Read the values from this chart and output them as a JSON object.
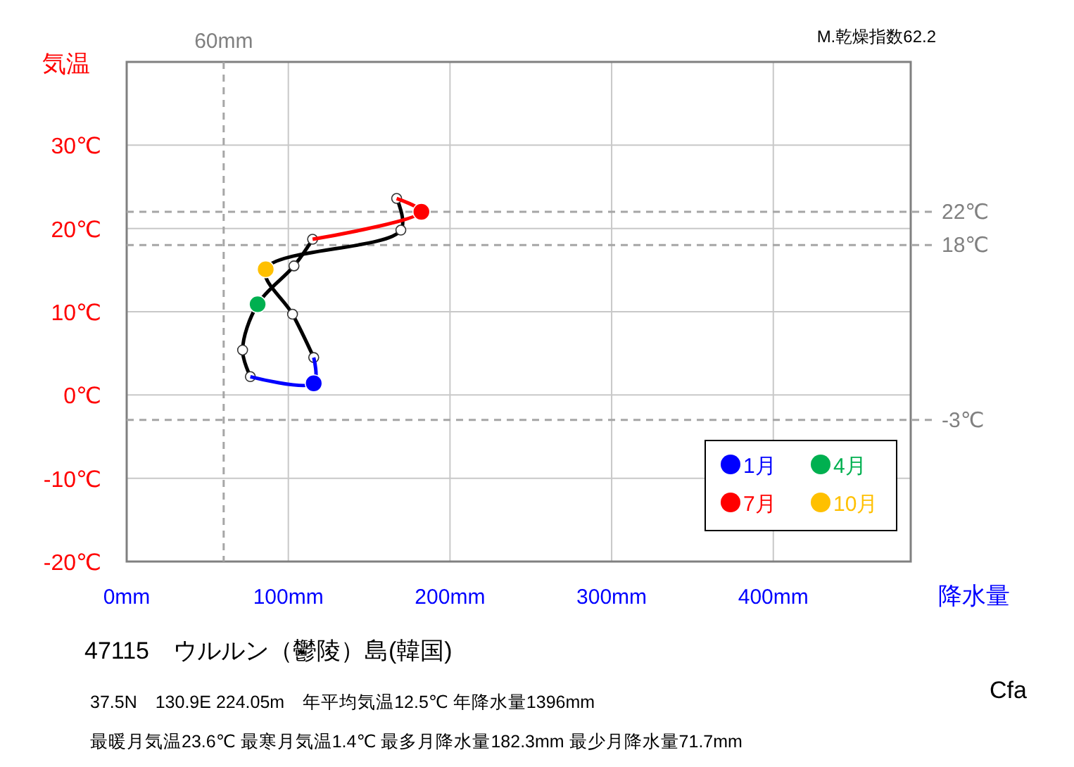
{
  "chart_data": {
    "type": "line",
    "title": "47115　ウルルン（鬱陵）島(韓国)",
    "ylabel": "気温",
    "xlabel": "降水量",
    "xlim": [
      0,
      485
    ],
    "xticks": [
      {
        "value": 0,
        "label": "0mm"
      },
      {
        "value": 100,
        "label": "100mm"
      },
      {
        "value": 200,
        "label": "200mm"
      },
      {
        "value": 300,
        "label": "300mm"
      },
      {
        "value": 400,
        "label": "400mm"
      }
    ],
    "ylim": [
      -20,
      40
    ],
    "yticks": [
      {
        "value": -20,
        "label": "-20℃"
      },
      {
        "value": -10,
        "label": "-10℃"
      },
      {
        "value": 0,
        "label": "0℃"
      },
      {
        "value": 10,
        "label": "10℃"
      },
      {
        "value": 20,
        "label": "20℃"
      },
      {
        "value": 30,
        "label": "30℃"
      }
    ],
    "grid": true,
    "legend": "bottom right",
    "marker": "circle",
    "line_style": "solid",
    "series": [
      {
        "color": "#000000",
        "x": [
          76.5,
          71.7,
          81,
          103.5,
          115
        ],
        "values": [
          2.2,
          5.4,
          10.9,
          15.5,
          18.7
        ]
      },
      {
        "color": "#000000",
        "x": [
          167,
          169.6,
          86,
          102.6,
          115.7
        ],
        "values": [
          23.6,
          19.8,
          15.1,
          9.7,
          4.5
        ]
      },
      {
        "marker": "none",
        "color": "#0000ff",
        "x": [
          115.7,
          115.7,
          76.5
        ],
        "values": [
          4.5,
          1.4,
          2.2
        ]
      },
      {
        "marker": "none",
        "color": "#ff0000",
        "x": [
          115,
          182.3,
          167
        ],
        "values": [
          18.7,
          22.0,
          23.6
        ]
      },
      {
        "type": "scatter",
        "name": "1月",
        "color": "#0000ff",
        "x": [
          115.7
        ],
        "values": [
          1.4
        ]
      },
      {
        "type": "scatter",
        "name": "4月",
        "color": "#00b050",
        "x": [
          81
        ],
        "values": [
          10.9
        ]
      },
      {
        "type": "scatter",
        "name": "7月",
        "color": "#ff0000",
        "x": [
          182.3
        ],
        "values": [
          22.0
        ]
      },
      {
        "type": "scatter",
        "name": "10月",
        "color": "#ffc000",
        "x": [
          86
        ],
        "values": [
          15.1
        ]
      }
    ],
    "ref_lines": [
      {
        "axis": "x",
        "value": 60,
        "label": "60mm",
        "color": "#a6a6a6",
        "line_style": "dashed"
      },
      {
        "axis": "y",
        "value": 22,
        "label": "22℃",
        "color": "#a6a6a6",
        "line_style": "dashed"
      },
      {
        "axis": "y",
        "value": 18,
        "label": "18℃",
        "color": "#a6a6a6",
        "line_style": "dashed"
      },
      {
        "axis": "y",
        "value": -3,
        "label": "-3℃",
        "color": "#a6a6a6",
        "line_style": "dashed"
      }
    ],
    "annotations": [
      "M.乾燥指数62.2",
      "37.5N　130.9E 224.05m　年平均気温12.5℃ 年降水量1396mm",
      "最暖月気温23.6℃ 最寒月気温1.4℃ 最多月降水量182.3mm 最少月降水量71.7mm",
      "Cfa"
    ]
  }
}
